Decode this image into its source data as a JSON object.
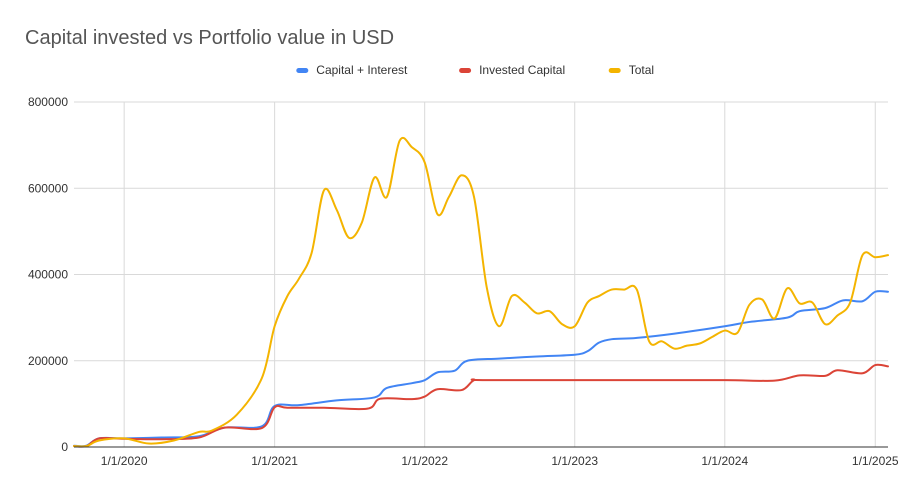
{
  "chart_data": {
    "type": "line",
    "title": "Capital invested vs Portfolio value in USD",
    "xlabel": "",
    "ylabel": "",
    "x_start": "2019-09-01",
    "x_end": "2025-02-01",
    "xlim": [
      "2019-09-01",
      "2025-02-01"
    ],
    "ylim": [
      0,
      800000
    ],
    "y_ticks": [
      0,
      200000,
      400000,
      600000,
      800000
    ],
    "y_tick_labels": [
      "0",
      "200000",
      "400000",
      "600000",
      "800000"
    ],
    "x_ticks": [
      "2020-01-01",
      "2021-01-01",
      "2022-01-01",
      "2023-01-01",
      "2024-01-01",
      "2025-01-01"
    ],
    "x_tick_labels": [
      "1/1/2020",
      "1/1/2021",
      "1/1/2022",
      "1/1/2023",
      "1/1/2024",
      "1/1/2025"
    ],
    "grid": true,
    "legend_position": "top",
    "series": [
      {
        "name": "Capital + Interest",
        "color": "#4285f4",
        "points": [
          [
            "2019-09-01",
            3000
          ],
          [
            "2019-10-01",
            3000
          ],
          [
            "2019-11-01",
            20000
          ],
          [
            "2020-01-01",
            20000
          ],
          [
            "2020-04-01",
            22000
          ],
          [
            "2020-07-01",
            25000
          ],
          [
            "2020-09-01",
            45000
          ],
          [
            "2020-12-01",
            48000
          ],
          [
            "2021-01-01",
            95000
          ],
          [
            "2021-03-01",
            97000
          ],
          [
            "2021-06-01",
            108000
          ],
          [
            "2021-09-01",
            115000
          ],
          [
            "2021-10-01",
            137000
          ],
          [
            "2021-12-01",
            148000
          ],
          [
            "2022-01-01",
            155000
          ],
          [
            "2022-02-01",
            173000
          ],
          [
            "2022-03-15",
            177000
          ],
          [
            "2022-04-15",
            200000
          ],
          [
            "2022-07-01",
            205000
          ],
          [
            "2022-10-01",
            210000
          ],
          [
            "2023-01-01",
            214000
          ],
          [
            "2023-02-01",
            222000
          ],
          [
            "2023-03-01",
            242000
          ],
          [
            "2023-04-01",
            250000
          ],
          [
            "2023-06-01",
            253000
          ],
          [
            "2023-09-01",
            263000
          ],
          [
            "2024-01-01",
            280000
          ],
          [
            "2024-03-01",
            290000
          ],
          [
            "2024-06-01",
            300000
          ],
          [
            "2024-07-01",
            315000
          ],
          [
            "2024-09-01",
            322000
          ],
          [
            "2024-10-15",
            340000
          ],
          [
            "2024-12-01",
            338000
          ],
          [
            "2025-01-01",
            360000
          ],
          [
            "2025-02-01",
            360000
          ]
        ]
      },
      {
        "name": "Invested Capital",
        "color": "#db4437",
        "points": [
          [
            "2019-09-01",
            2000
          ],
          [
            "2019-10-01",
            2000
          ],
          [
            "2019-11-01",
            20000
          ],
          [
            "2020-01-01",
            19000
          ],
          [
            "2020-04-01",
            18000
          ],
          [
            "2020-07-01",
            22000
          ],
          [
            "2020-09-01",
            45000
          ],
          [
            "2020-12-01",
            44000
          ],
          [
            "2021-01-01",
            92000
          ],
          [
            "2021-02-01",
            91000
          ],
          [
            "2021-05-01",
            91000
          ],
          [
            "2021-08-15",
            89000
          ],
          [
            "2021-09-15",
            112000
          ],
          [
            "2021-12-01",
            111000
          ],
          [
            "2022-01-01",
            117000
          ],
          [
            "2022-02-01",
            134000
          ],
          [
            "2022-04-01",
            132000
          ],
          [
            "2022-05-01",
            155000
          ],
          [
            "2022-06-01",
            155000
          ],
          [
            "2023-06-01",
            155000
          ],
          [
            "2024-01-01",
            155000
          ],
          [
            "2024-05-01",
            154000
          ],
          [
            "2024-07-01",
            166000
          ],
          [
            "2024-09-01",
            165000
          ],
          [
            "2024-10-01",
            178000
          ],
          [
            "2024-12-01",
            171000
          ],
          [
            "2025-01-01",
            190000
          ],
          [
            "2025-02-01",
            187000
          ]
        ]
      },
      {
        "name": "Total",
        "color": "#f4b400",
        "points": [
          [
            "2019-09-01",
            2000
          ],
          [
            "2019-10-01",
            2000
          ],
          [
            "2019-11-01",
            15000
          ],
          [
            "2020-01-01",
            20000
          ],
          [
            "2020-03-01",
            8000
          ],
          [
            "2020-05-01",
            15000
          ],
          [
            "2020-07-01",
            35000
          ],
          [
            "2020-08-01",
            38000
          ],
          [
            "2020-10-01",
            75000
          ],
          [
            "2020-12-01",
            160000
          ],
          [
            "2021-01-01",
            280000
          ],
          [
            "2021-02-01",
            350000
          ],
          [
            "2021-03-01",
            390000
          ],
          [
            "2021-04-01",
            450000
          ],
          [
            "2021-05-01",
            595000
          ],
          [
            "2021-06-01",
            550000
          ],
          [
            "2021-07-01",
            485000
          ],
          [
            "2021-08-01",
            520000
          ],
          [
            "2021-09-01",
            625000
          ],
          [
            "2021-10-01",
            580000
          ],
          [
            "2021-11-01",
            710000
          ],
          [
            "2021-12-01",
            695000
          ],
          [
            "2022-01-01",
            660000
          ],
          [
            "2022-02-01",
            540000
          ],
          [
            "2022-03-01",
            580000
          ],
          [
            "2022-04-01",
            630000
          ],
          [
            "2022-05-01",
            580000
          ],
          [
            "2022-06-01",
            370000
          ],
          [
            "2022-07-01",
            280000
          ],
          [
            "2022-08-01",
            350000
          ],
          [
            "2022-09-01",
            335000
          ],
          [
            "2022-10-01",
            310000
          ],
          [
            "2022-11-01",
            315000
          ],
          [
            "2022-12-01",
            285000
          ],
          [
            "2023-01-01",
            280000
          ],
          [
            "2023-02-01",
            335000
          ],
          [
            "2023-03-01",
            350000
          ],
          [
            "2023-04-01",
            365000
          ],
          [
            "2023-05-01",
            365000
          ],
          [
            "2023-06-01",
            365000
          ],
          [
            "2023-07-01",
            245000
          ],
          [
            "2023-08-01",
            245000
          ],
          [
            "2023-09-01",
            228000
          ],
          [
            "2023-10-01",
            235000
          ],
          [
            "2023-11-01",
            240000
          ],
          [
            "2023-12-01",
            255000
          ],
          [
            "2024-01-01",
            270000
          ],
          [
            "2024-02-01",
            265000
          ],
          [
            "2024-03-01",
            330000
          ],
          [
            "2024-04-01",
            342000
          ],
          [
            "2024-05-01",
            298000
          ],
          [
            "2024-06-01",
            368000
          ],
          [
            "2024-07-01",
            333000
          ],
          [
            "2024-08-01",
            335000
          ],
          [
            "2024-09-01",
            285000
          ],
          [
            "2024-10-01",
            305000
          ],
          [
            "2024-11-01",
            335000
          ],
          [
            "2024-12-01",
            445000
          ],
          [
            "2025-01-01",
            440000
          ],
          [
            "2025-02-01",
            445000
          ]
        ]
      }
    ]
  }
}
